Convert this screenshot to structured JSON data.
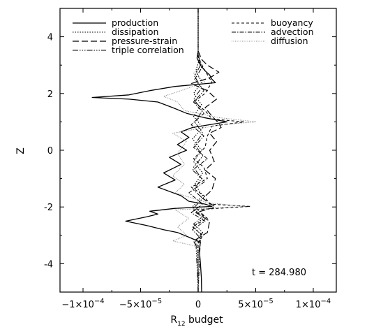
{
  "chart_data": {
    "type": "line",
    "orientation": "vertical-profile",
    "title": "",
    "xlabel_main": "R",
    "xlabel_sub": "12",
    "xlabel_rest": " budget",
    "ylabel": "Z",
    "xlim": [
      -0.00012,
      0.00012
    ],
    "ylim": [
      -5,
      5
    ],
    "yticks": [
      {
        "v": 4,
        "label": "4"
      },
      {
        "v": 2,
        "label": "2"
      },
      {
        "v": 0,
        "label": "0"
      },
      {
        "v": -2,
        "label": "-2"
      },
      {
        "v": -4,
        "label": "-4"
      }
    ],
    "xticks": [
      {
        "v": -0.0001,
        "mant": "−1×10",
        "exp": "−4"
      },
      {
        "v": -5e-05,
        "mant": "−5×10",
        "exp": "−5"
      },
      {
        "v": 0,
        "mant": "0",
        "exp": ""
      },
      {
        "v": 5e-05,
        "mant": "5×10",
        "exp": "−5"
      },
      {
        "v": 0.0001,
        "mant": "1×10",
        "exp": "−4"
      }
    ],
    "annotation": "t = 284.980",
    "grid": false,
    "legend_position": "top",
    "series": [
      {
        "name": "production",
        "dash": "",
        "color": "#000000",
        "width": 1.3,
        "points": [
          [
            -5,
            3e-06
          ],
          [
            -4.5,
            2.8e-06
          ],
          [
            -4,
            2e-06
          ],
          [
            -3.5,
            1e-06
          ],
          [
            -3.25,
            2e-06
          ],
          [
            -3.1,
            -6e-06
          ],
          [
            -2.9,
            -1.8e-05
          ],
          [
            -2.8,
            -3e-05
          ],
          [
            -2.65,
            -4.5e-05
          ],
          [
            -2.5,
            -6.3e-05
          ],
          [
            -2.35,
            -4.5e-05
          ],
          [
            -2.25,
            -3.5e-05
          ],
          [
            -2.15,
            -4.2e-05
          ],
          [
            -2.05,
            -2e-05
          ],
          [
            -1.98,
            1.2e-05
          ],
          [
            -1.9,
            6e-06
          ],
          [
            -1.8,
            -8e-06
          ],
          [
            -1.6,
            -1.5e-05
          ],
          [
            -1.3,
            -3.5e-05
          ],
          [
            -1.05,
            -2e-05
          ],
          [
            -0.8,
            -3e-05
          ],
          [
            -0.5,
            -1.5e-05
          ],
          [
            -0.25,
            -2.5e-05
          ],
          [
            0.0,
            -1e-05
          ],
          [
            0.2,
            -1.8e-05
          ],
          [
            0.45,
            -8e-06
          ],
          [
            0.65,
            -1.5e-05
          ],
          [
            0.8,
            -5e-06
          ],
          [
            1.0,
            2.5e-05
          ],
          [
            1.15,
            5e-06
          ],
          [
            1.3,
            -1e-05
          ],
          [
            1.5,
            -2.2e-05
          ],
          [
            1.7,
            -3.5e-05
          ],
          [
            1.8,
            -6e-05
          ],
          [
            1.86,
            -9.2e-05
          ],
          [
            1.95,
            -6e-05
          ],
          [
            2.1,
            -4.2e-05
          ],
          [
            2.25,
            -2e-05
          ],
          [
            2.38,
            1.5e-05
          ],
          [
            2.5,
            1.2e-05
          ],
          [
            2.65,
            1e-05
          ],
          [
            2.8,
            6e-06
          ],
          [
            3.0,
            2e-06
          ],
          [
            3.25,
            -1e-06
          ],
          [
            3.5,
            0.0
          ],
          [
            4,
            0.0
          ],
          [
            5,
            0.0
          ]
        ]
      },
      {
        "name": "dissipation",
        "dash": "1.5,2",
        "color": "#000000",
        "width": 1.1,
        "points": [
          [
            -5,
            0.0
          ],
          [
            -3.3,
            -5e-07
          ],
          [
            -3.0,
            3e-06
          ],
          [
            -2.7,
            -4e-06
          ],
          [
            -2.4,
            4e-06
          ],
          [
            -2.0,
            -5e-06
          ],
          [
            -1.6,
            4e-06
          ],
          [
            -1.2,
            -3e-06
          ],
          [
            -0.8,
            4e-06
          ],
          [
            -0.4,
            -4e-06
          ],
          [
            0.0,
            3e-06
          ],
          [
            0.4,
            -5e-06
          ],
          [
            0.8,
            4e-06
          ],
          [
            1.2,
            -4e-06
          ],
          [
            1.6,
            3e-06
          ],
          [
            2.0,
            -4e-06
          ],
          [
            2.4,
            3e-06
          ],
          [
            2.8,
            -2e-06
          ],
          [
            3.2,
            1e-06
          ],
          [
            3.5,
            0.0
          ],
          [
            5,
            0.0
          ]
        ]
      },
      {
        "name": "pressure-strain",
        "dash": "9,4",
        "color": "#000000",
        "width": 1.2,
        "points": [
          [
            -5,
            0.0
          ],
          [
            -3.5,
            0.0
          ],
          [
            -3.2,
            -4e-06
          ],
          [
            -2.9,
            8e-06
          ],
          [
            -2.5,
            1e-05
          ],
          [
            -2.2,
            -2e-06
          ],
          [
            -2.0,
            1.5e-05
          ],
          [
            -1.7,
            4e-06
          ],
          [
            -1.4,
            1.2e-05
          ],
          [
            -1.0,
            1.5e-05
          ],
          [
            -0.7,
            6e-06
          ],
          [
            -0.4,
            1.4e-05
          ],
          [
            0.0,
            1e-05
          ],
          [
            0.3,
            1.6e-05
          ],
          [
            0.6,
            1e-05
          ],
          [
            0.8,
            2e-05
          ],
          [
            0.95,
            1.8e-05
          ],
          [
            1.2,
            1.2e-05
          ],
          [
            1.5,
            6e-06
          ],
          [
            1.8,
            1.6e-05
          ],
          [
            2.1,
            8e-06
          ],
          [
            2.35,
            -6e-06
          ],
          [
            2.55,
            1e-05
          ],
          [
            2.75,
            1.8e-05
          ],
          [
            3.0,
            8e-06
          ],
          [
            3.2,
            3e-06
          ],
          [
            3.5,
            0.0
          ],
          [
            5,
            0.0
          ]
        ]
      },
      {
        "name": "triple correlation",
        "dash": "8,2,1.5,2,1.5,2,1.5,2",
        "color": "#000000",
        "width": 1.0,
        "points": [
          [
            -5,
            0.0
          ],
          [
            -3.2,
            -2e-06
          ],
          [
            -2.9,
            4e-06
          ],
          [
            -2.6,
            -4e-06
          ],
          [
            -2.3,
            5e-06
          ],
          [
            -2.0,
            -3e-06
          ],
          [
            -1.7,
            4e-06
          ],
          [
            -1.4,
            -4e-06
          ],
          [
            -1.0,
            3e-06
          ],
          [
            -0.6,
            -4e-06
          ],
          [
            -0.2,
            4e-06
          ],
          [
            0.2,
            -3e-06
          ],
          [
            0.6,
            4e-06
          ],
          [
            1.0,
            -3e-06
          ],
          [
            1.4,
            4e-06
          ],
          [
            1.8,
            -4e-06
          ],
          [
            2.2,
            3e-06
          ],
          [
            2.6,
            -3e-06
          ],
          [
            3.0,
            2e-06
          ],
          [
            3.4,
            0.0
          ],
          [
            5,
            0.0
          ]
        ]
      },
      {
        "name": "buoyancy",
        "dash": "4,3",
        "color": "#000000",
        "width": 1.1,
        "points": [
          [
            -5,
            0.0
          ],
          [
            -3.3,
            0.0
          ],
          [
            -3.0,
            4e-06
          ],
          [
            -2.7,
            -5e-06
          ],
          [
            -2.4,
            8e-06
          ],
          [
            -2.1,
            -4e-06
          ],
          [
            -1.98,
            4.5e-05
          ],
          [
            -1.9,
            1e-05
          ],
          [
            -1.6,
            5e-06
          ],
          [
            -1.3,
            -6e-06
          ],
          [
            -1.0,
            8e-06
          ],
          [
            -0.6,
            5e-06
          ],
          [
            -0.3,
            -4e-06
          ],
          [
            0.1,
            6e-06
          ],
          [
            0.5,
            8e-06
          ],
          [
            0.85,
            1.2e-05
          ],
          [
            1.0,
            4e-05
          ],
          [
            1.1,
            1.2e-05
          ],
          [
            1.4,
            6e-06
          ],
          [
            1.7,
            -4e-06
          ],
          [
            2.0,
            6e-06
          ],
          [
            2.4,
            1.2e-05
          ],
          [
            2.8,
            6e-06
          ],
          [
            3.1,
            2e-06
          ],
          [
            3.4,
            0.0
          ],
          [
            5,
            0.0
          ]
        ]
      },
      {
        "name": "advection",
        "dash": "6,2,1.5,2",
        "color": "#000000",
        "width": 1.0,
        "points": [
          [
            -5,
            0.0
          ],
          [
            -3.1,
            2e-06
          ],
          [
            -2.8,
            -5e-06
          ],
          [
            -2.5,
            6e-06
          ],
          [
            -2.2,
            -6e-06
          ],
          [
            -1.9,
            4e-06
          ],
          [
            -1.5,
            -8e-06
          ],
          [
            -1.1,
            6e-06
          ],
          [
            -0.7,
            -5e-06
          ],
          [
            -0.3,
            8e-06
          ],
          [
            0.1,
            -4e-06
          ],
          [
            0.5,
            5e-06
          ],
          [
            0.9,
            -6e-06
          ],
          [
            1.3,
            5e-06
          ],
          [
            1.7,
            -4e-06
          ],
          [
            2.1,
            5e-06
          ],
          [
            2.5,
            -3e-06
          ],
          [
            2.9,
            3e-06
          ],
          [
            3.3,
            0.0
          ],
          [
            5,
            0.0
          ]
        ]
      },
      {
        "name": "diffusion",
        "dash": "1,1.5",
        "color": "#888888",
        "width": 1.1,
        "points": [
          [
            -5,
            0.0
          ],
          [
            -3.4,
            0.0
          ],
          [
            -3.2,
            -2.2e-05
          ],
          [
            -3.0,
            -1e-05
          ],
          [
            -2.7,
            -1.8e-05
          ],
          [
            -2.4,
            -8e-06
          ],
          [
            -2.1,
            -2e-05
          ],
          [
            -1.98,
            4e-05
          ],
          [
            -1.85,
            8e-06
          ],
          [
            -1.5,
            -2e-05
          ],
          [
            -1.2,
            -1.2e-05
          ],
          [
            -0.9,
            -2.2e-05
          ],
          [
            -0.5,
            -1.2e-05
          ],
          [
            -0.1,
            -1.8e-05
          ],
          [
            0.3,
            -1e-05
          ],
          [
            0.6,
            -2.2e-05
          ],
          [
            0.9,
            2e-05
          ],
          [
            1.0,
            5e-05
          ],
          [
            1.15,
            1.8e-05
          ],
          [
            1.4,
            -1.2e-05
          ],
          [
            1.7,
            -1.8e-05
          ],
          [
            1.9,
            -3e-05
          ],
          [
            2.1,
            -1.5e-05
          ],
          [
            2.4,
            6e-06
          ],
          [
            2.7,
            -4e-06
          ],
          [
            3.0,
            3e-06
          ],
          [
            3.4,
            0.0
          ],
          [
            5,
            0.0
          ]
        ]
      }
    ]
  }
}
